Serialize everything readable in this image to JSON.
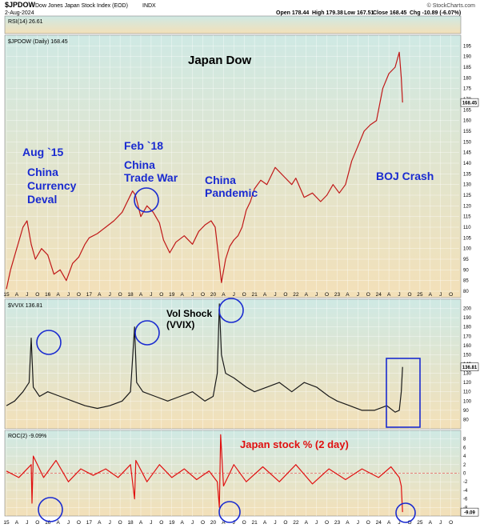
{
  "header": {
    "symbol": "$JPDOW",
    "name": "Dow Jones Japan Stock Index (EOD)",
    "exchange": "INDX",
    "date": "2-Aug-2024",
    "watermark": "© StockCharts.com",
    "open": "Open 178.44",
    "high": "High 179.38",
    "low": "Low 167.51",
    "close": "Close 168.45",
    "chg": "Chg -10.89 (-6.07%)"
  },
  "colors": {
    "price_line": "#c01818",
    "vvix_line": "#1a1a1a",
    "roc_line": "#e01010",
    "annotation": "#1a2bd0",
    "circle": "#1a2bd0",
    "panel_top": "#cfe9e4",
    "panel_bottom": "#f3e0b8"
  },
  "chart_data": [
    {
      "type": "line",
      "panel": "rsi",
      "label": "RSI(14) 26.61",
      "value": 26.61
    },
    {
      "type": "line",
      "panel": "price",
      "label": "$JPDOW (Daily) 168.45",
      "title": "Japan Dow",
      "ylim": [
        77,
        200
      ],
      "yticks": [
        80,
        85,
        90,
        95,
        100,
        105,
        110,
        115,
        120,
        125,
        130,
        135,
        140,
        145,
        150,
        155,
        160,
        165,
        170,
        175,
        180,
        185,
        190,
        195
      ],
      "last_value_label": "168.45",
      "x": [
        2015.0,
        2015.1,
        2015.25,
        2015.4,
        2015.5,
        2015.6,
        2015.7,
        2015.85,
        2016.0,
        2016.15,
        2016.3,
        2016.45,
        2016.6,
        2016.75,
        2016.9,
        2017.0,
        2017.2,
        2017.4,
        2017.6,
        2017.8,
        2017.95,
        2018.05,
        2018.12,
        2018.25,
        2018.4,
        2018.55,
        2018.7,
        2018.8,
        2018.95,
        2019.1,
        2019.3,
        2019.5,
        2019.65,
        2019.8,
        2019.95,
        2020.05,
        2020.15,
        2020.2,
        2020.3,
        2020.4,
        2020.5,
        2020.6,
        2020.7,
        2020.8,
        2020.9,
        2021.0,
        2021.15,
        2021.3,
        2021.5,
        2021.7,
        2021.9,
        2022.0,
        2022.2,
        2022.4,
        2022.6,
        2022.75,
        2022.9,
        2023.05,
        2023.2,
        2023.35,
        2023.5,
        2023.65,
        2023.8,
        2023.95,
        2024.1,
        2024.25,
        2024.4,
        2024.5,
        2024.55,
        2024.58
      ],
      "y": [
        81,
        90,
        100,
        110,
        113,
        102,
        95,
        100,
        97,
        88,
        90,
        85,
        93,
        96,
        102,
        105,
        107,
        110,
        113,
        117,
        123,
        127,
        125,
        115,
        120,
        117,
        112,
        104,
        98,
        103,
        106,
        102,
        108,
        111,
        113,
        110,
        93,
        84,
        95,
        101,
        104,
        106,
        110,
        118,
        122,
        128,
        132,
        130,
        138,
        134,
        130,
        133,
        124,
        126,
        122,
        125,
        130,
        126,
        130,
        141,
        148,
        155,
        158,
        160,
        175,
        182,
        185,
        192,
        180,
        168.45
      ]
    },
    {
      "type": "line",
      "panel": "vvix",
      "label": "$VVIX 136.81",
      "ylim": [
        70,
        210
      ],
      "yticks": [
        80,
        90,
        100,
        110,
        120,
        130,
        140,
        150,
        160,
        170,
        180,
        190,
        200,
        210
      ],
      "last_value_label": "136.81",
      "x": [
        2015.0,
        2015.2,
        2015.4,
        2015.55,
        2015.6,
        2015.65,
        2015.8,
        2016.0,
        2016.3,
        2016.6,
        2016.9,
        2017.2,
        2017.5,
        2017.8,
        2018.0,
        2018.1,
        2018.15,
        2018.3,
        2018.6,
        2018.9,
        2019.2,
        2019.5,
        2019.8,
        2020.0,
        2020.1,
        2020.15,
        2020.2,
        2020.3,
        2020.5,
        2020.8,
        2021.0,
        2021.3,
        2021.6,
        2021.9,
        2022.2,
        2022.5,
        2022.8,
        2023.0,
        2023.3,
        2023.6,
        2023.9,
        2024.2,
        2024.4,
        2024.5,
        2024.55,
        2024.58
      ],
      "y": [
        95,
        100,
        110,
        120,
        168,
        115,
        105,
        110,
        105,
        100,
        95,
        92,
        95,
        100,
        110,
        180,
        120,
        110,
        105,
        100,
        105,
        110,
        100,
        105,
        130,
        205,
        150,
        130,
        125,
        115,
        110,
        115,
        120,
        110,
        120,
        115,
        105,
        100,
        95,
        90,
        90,
        95,
        88,
        90,
        110,
        136.81
      ]
    },
    {
      "type": "line",
      "panel": "roc",
      "label": "ROC(2) -9.09%",
      "ylim": [
        -10,
        10
      ],
      "yticks": [
        -10,
        -8,
        -6,
        -4,
        -2,
        0,
        2,
        4,
        6,
        8,
        10
      ],
      "last_value_label": "-9.09",
      "x": [
        2015.0,
        2015.3,
        2015.6,
        2015.62,
        2015.65,
        2015.9,
        2016.2,
        2016.5,
        2016.8,
        2017.1,
        2017.4,
        2017.7,
        2018.0,
        2018.1,
        2018.13,
        2018.4,
        2018.7,
        2019.0,
        2019.3,
        2019.6,
        2019.9,
        2020.1,
        2020.15,
        2020.18,
        2020.25,
        2020.5,
        2020.8,
        2021.2,
        2021.6,
        2022.0,
        2022.4,
        2022.8,
        2023.2,
        2023.6,
        2024.0,
        2024.3,
        2024.5,
        2024.55,
        2024.58
      ],
      "y": [
        0.5,
        -1,
        2,
        -7,
        4,
        -1,
        3,
        -2,
        1,
        -0.5,
        1,
        -1,
        2,
        -6,
        3,
        -2,
        2,
        -1,
        1,
        -1.5,
        0.5,
        -2,
        -8,
        9,
        -3,
        2,
        -2,
        1.5,
        -2,
        2,
        -2.5,
        1,
        -1.5,
        1,
        -1,
        1.5,
        -1,
        -3,
        -9.09
      ]
    }
  ],
  "x_axis": {
    "ticks": [
      "15",
      "A",
      "J",
      "O",
      "16",
      "A",
      "J",
      "O",
      "17",
      "A",
      "J",
      "O",
      "18",
      "A",
      "J",
      "O",
      "19",
      "A",
      "J",
      "O",
      "20",
      "A",
      "J",
      "O",
      "21",
      "A",
      "J",
      "O",
      "22",
      "A",
      "J",
      "O",
      "23",
      "A",
      "J",
      "O",
      "24",
      "A",
      "J",
      "O",
      "25",
      "A",
      "J",
      "O"
    ]
  },
  "annotations": {
    "title": "Japan Dow",
    "aug15": "Aug `15",
    "china_currency_1": "China",
    "china_currency_2": "Currency",
    "china_currency_3": "Deval",
    "feb18": "Feb `18",
    "china_trade_1": "China",
    "china_trade_2": "Trade War",
    "china_pandemic_1": "China",
    "china_pandemic_2": "Pandemic",
    "boj": "BOJ Crash",
    "vol_shock_1": "Vol Shock",
    "vol_shock_2": "(VVIX)",
    "japan_stock": "Japan stock % (2 day)"
  }
}
